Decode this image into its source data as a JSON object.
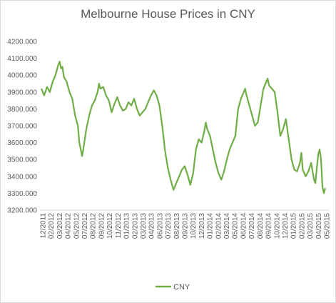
{
  "chart_data": {
    "type": "line",
    "title": "Melbourne House Prices in CNY",
    "xlabel": "",
    "ylabel": "",
    "ylim": [
      3200,
      4200
    ],
    "yticks": [
      "3200.000",
      "3300.000",
      "3400.000",
      "3500.000",
      "3600.000",
      "3700.000",
      "3800.000",
      "3900.000",
      "4000.000",
      "4100.000",
      "4200.000"
    ],
    "ytick_values": [
      3200,
      3300,
      3400,
      3500,
      3600,
      3700,
      3800,
      3900,
      4000,
      4100,
      4200
    ],
    "xticks": [
      "12/2011",
      "02/2012",
      "03/2012",
      "04/2012",
      "05/2012",
      "07/2012",
      "08/2012",
      "09/2012",
      "10/2012",
      "11/2012",
      "01/2013",
      "02/2013",
      "03/2013",
      "04/2013",
      "06/2013",
      "07/2013",
      "08/2013",
      "09/2013",
      "10/2013",
      "12/2013",
      "01/2014",
      "02/2014",
      "03/2014",
      "05/2014",
      "06/2014",
      "07/2014",
      "08/2014",
      "09/2014",
      "10/2014",
      "12/2014",
      "01/2015",
      "02/2015",
      "03/2015",
      "04/2015",
      "05/2015"
    ],
    "legend_position": "bottom",
    "grid": false,
    "series": [
      {
        "name": "CNY",
        "color": "#70ad47",
        "points": [
          [
            0.0,
            3920
          ],
          [
            0.01,
            3880
          ],
          [
            0.02,
            3930
          ],
          [
            0.03,
            3900
          ],
          [
            0.04,
            3960
          ],
          [
            0.05,
            4000
          ],
          [
            0.055,
            4030
          ],
          [
            0.06,
            4060
          ],
          [
            0.065,
            4080
          ],
          [
            0.07,
            4040
          ],
          [
            0.075,
            4050
          ],
          [
            0.08,
            3990
          ],
          [
            0.09,
            3960
          ],
          [
            0.1,
            3900
          ],
          [
            0.11,
            3860
          ],
          [
            0.12,
            3760
          ],
          [
            0.13,
            3700
          ],
          [
            0.135,
            3600
          ],
          [
            0.14,
            3560
          ],
          [
            0.145,
            3520
          ],
          [
            0.15,
            3570
          ],
          [
            0.16,
            3680
          ],
          [
            0.17,
            3760
          ],
          [
            0.18,
            3820
          ],
          [
            0.19,
            3850
          ],
          [
            0.2,
            3900
          ],
          [
            0.205,
            3950
          ],
          [
            0.21,
            3920
          ],
          [
            0.22,
            3930
          ],
          [
            0.23,
            3880
          ],
          [
            0.24,
            3850
          ],
          [
            0.25,
            3780
          ],
          [
            0.26,
            3830
          ],
          [
            0.27,
            3870
          ],
          [
            0.28,
            3820
          ],
          [
            0.29,
            3790
          ],
          [
            0.3,
            3800
          ],
          [
            0.31,
            3840
          ],
          [
            0.32,
            3820
          ],
          [
            0.33,
            3860
          ],
          [
            0.34,
            3800
          ],
          [
            0.35,
            3760
          ],
          [
            0.36,
            3780
          ],
          [
            0.37,
            3800
          ],
          [
            0.38,
            3840
          ],
          [
            0.39,
            3880
          ],
          [
            0.4,
            3910
          ],
          [
            0.41,
            3880
          ],
          [
            0.42,
            3820
          ],
          [
            0.43,
            3700
          ],
          [
            0.44,
            3550
          ],
          [
            0.45,
            3450
          ],
          [
            0.46,
            3380
          ],
          [
            0.47,
            3320
          ],
          [
            0.48,
            3360
          ],
          [
            0.49,
            3400
          ],
          [
            0.5,
            3440
          ],
          [
            0.51,
            3460
          ],
          [
            0.52,
            3410
          ],
          [
            0.53,
            3350
          ],
          [
            0.54,
            3420
          ],
          [
            0.55,
            3560
          ],
          [
            0.56,
            3620
          ],
          [
            0.57,
            3600
          ],
          [
            0.58,
            3670
          ],
          [
            0.585,
            3720
          ],
          [
            0.59,
            3680
          ],
          [
            0.6,
            3640
          ],
          [
            0.61,
            3560
          ],
          [
            0.62,
            3480
          ],
          [
            0.63,
            3420
          ],
          [
            0.64,
            3380
          ],
          [
            0.65,
            3430
          ],
          [
            0.66,
            3500
          ],
          [
            0.67,
            3560
          ],
          [
            0.68,
            3600
          ],
          [
            0.69,
            3640
          ],
          [
            0.7,
            3800
          ],
          [
            0.71,
            3860
          ],
          [
            0.72,
            3900
          ],
          [
            0.725,
            3920
          ],
          [
            0.73,
            3880
          ],
          [
            0.74,
            3820
          ],
          [
            0.75,
            3760
          ],
          [
            0.76,
            3700
          ],
          [
            0.77,
            3720
          ],
          [
            0.78,
            3820
          ],
          [
            0.79,
            3920
          ],
          [
            0.8,
            3960
          ],
          [
            0.805,
            3980
          ],
          [
            0.81,
            3940
          ],
          [
            0.82,
            3920
          ],
          [
            0.83,
            3900
          ],
          [
            0.84,
            3780
          ],
          [
            0.85,
            3640
          ],
          [
            0.86,
            3680
          ],
          [
            0.87,
            3740
          ],
          [
            0.88,
            3620
          ],
          [
            0.89,
            3500
          ],
          [
            0.9,
            3440
          ],
          [
            0.91,
            3430
          ],
          [
            0.92,
            3480
          ],
          [
            0.925,
            3540
          ],
          [
            0.93,
            3440
          ],
          [
            0.94,
            3400
          ],
          [
            0.95,
            3430
          ],
          [
            0.96,
            3480
          ],
          [
            0.97,
            3380
          ],
          [
            0.975,
            3360
          ],
          [
            0.98,
            3450
          ],
          [
            0.985,
            3530
          ],
          [
            0.99,
            3560
          ],
          [
            0.995,
            3500
          ],
          [
            1.0,
            3340
          ],
          [
            1.005,
            3300
          ],
          [
            1.01,
            3330
          ]
        ]
      }
    ]
  }
}
